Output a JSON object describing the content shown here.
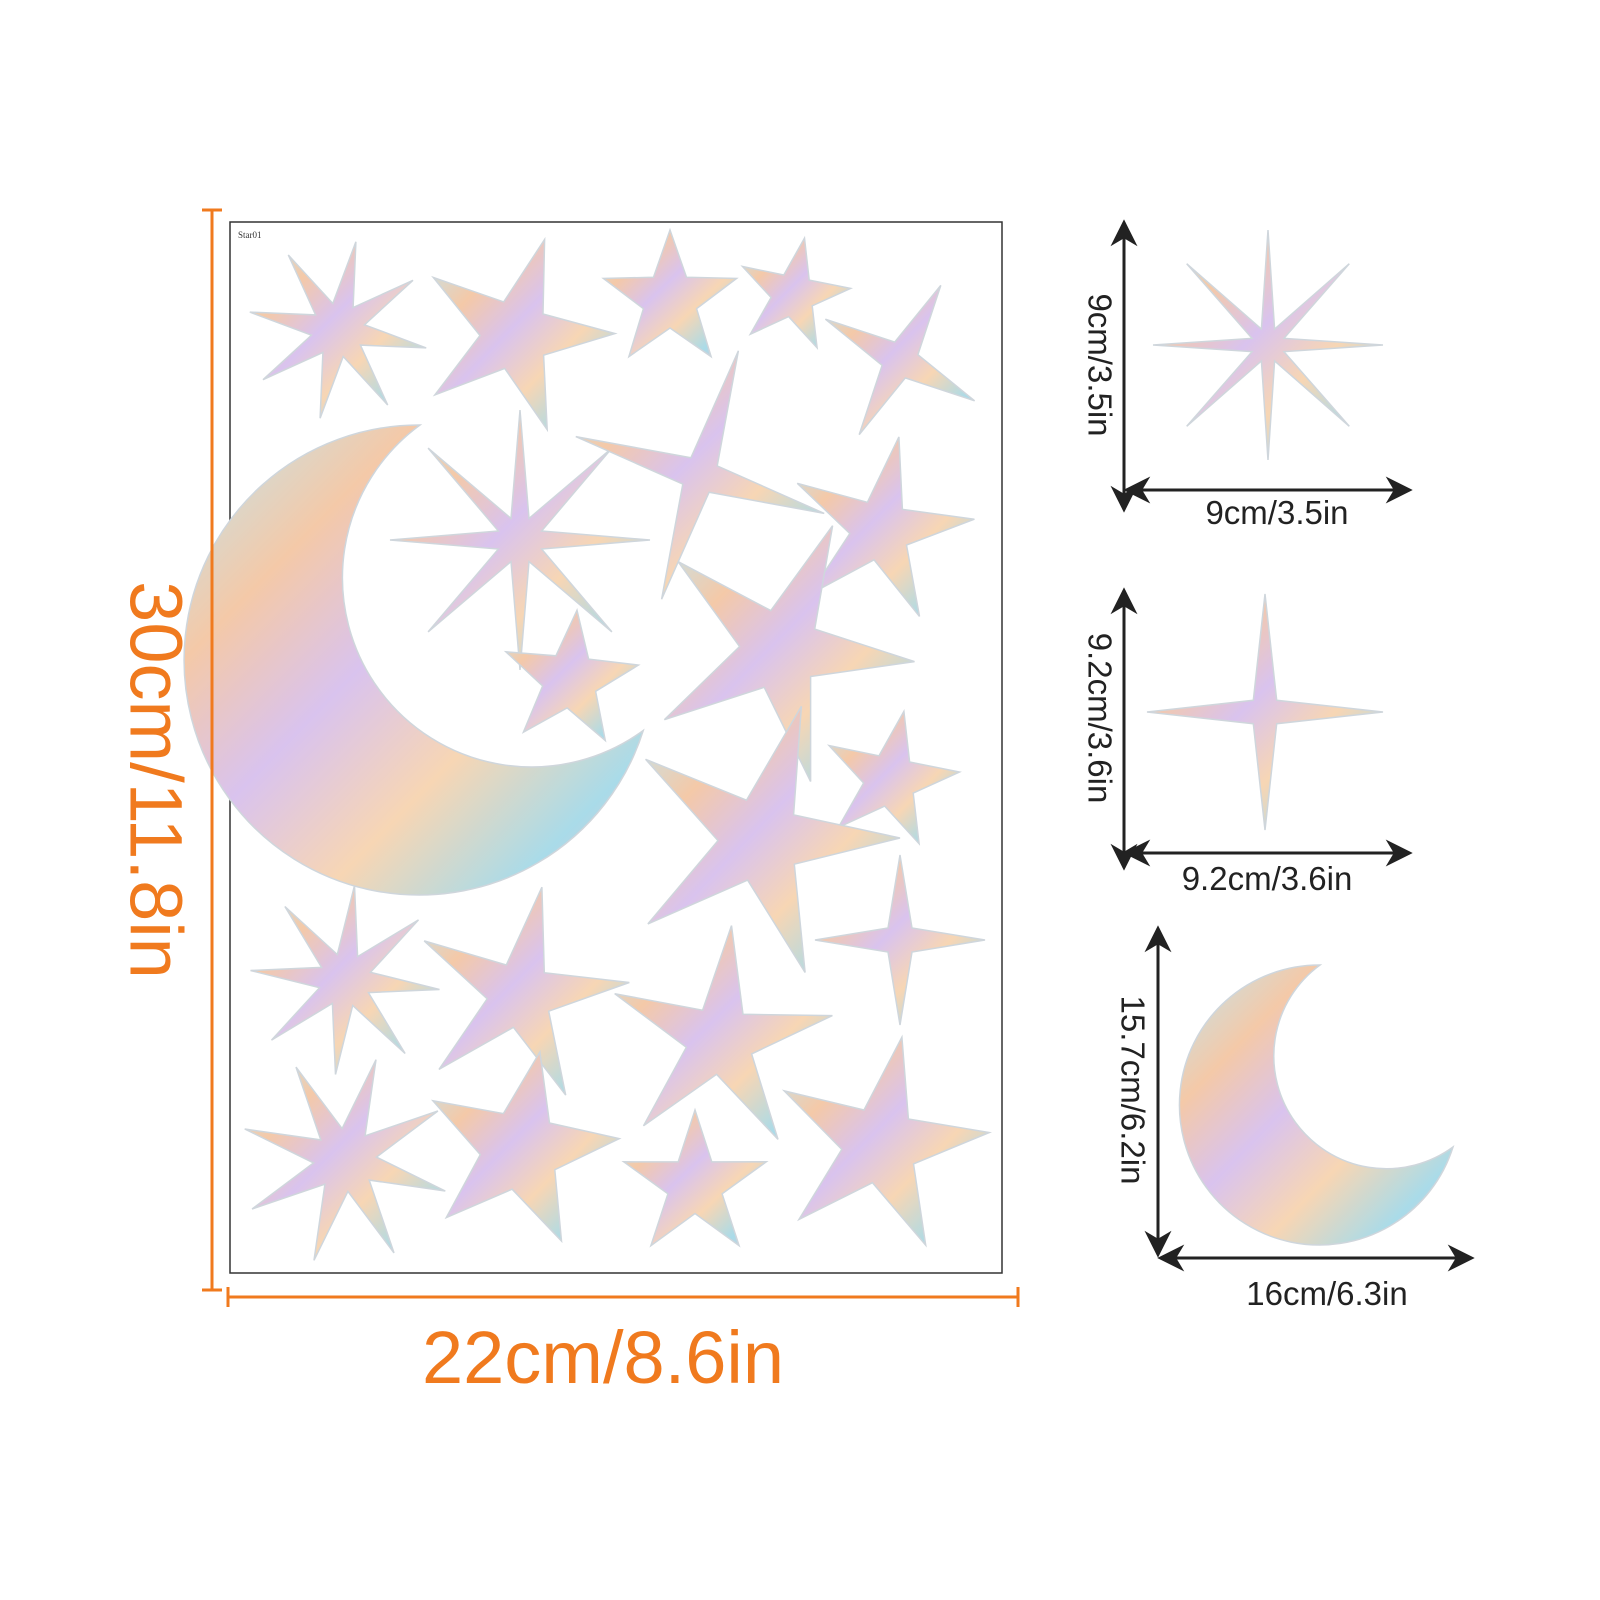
{
  "sheet": {
    "label": "Star01",
    "height": "30cm/11.8in",
    "width": "22cm/8.6in"
  },
  "items": [
    {
      "height": "9cm/3.5in",
      "width": "9cm/3.5in"
    },
    {
      "height": "9.2cm/3.6in",
      "width": "9.2cm/3.6in"
    },
    {
      "height": "15.7cm/6.2in",
      "width": "16cm/6.3in"
    }
  ]
}
